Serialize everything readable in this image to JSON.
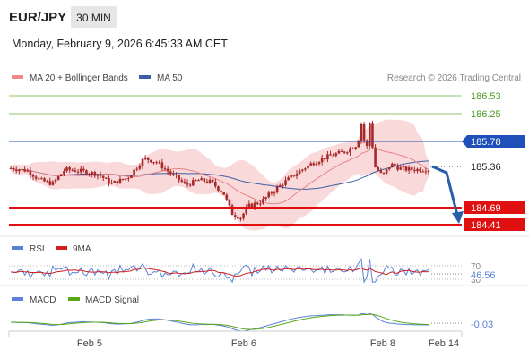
{
  "header": {
    "symbol": "EUR/JPY",
    "timeframe": "30 MIN",
    "datetime": "Monday, February 9, 2026 6:45:33 AM CET"
  },
  "legend": {
    "ma20_label": "MA 20 + Bollinger Bands",
    "ma50_label": "MA 50",
    "credit": "Research © 2026 Trading Central"
  },
  "colors": {
    "candle": "#a82a2a",
    "bollinger_fill": "#f9d9d9",
    "ma20": "#e8838a",
    "ma50": "#3a5ea8",
    "resistance_green": "#8fc46a",
    "pivot_blue": "#1f4fb8",
    "support_red": "#e01010",
    "arrow": "#2a5fa8",
    "rsi": "#5b82d6",
    "rsi_ma": "#d01e1e",
    "macd": "#5b82d6",
    "macd_signal": "#5aa81a"
  },
  "levels": {
    "r2": "186.53",
    "r1": "186.25",
    "pivot": "185.78",
    "current": "185.36",
    "s1": "184.69",
    "s2": "184.41"
  },
  "rsi_panel": {
    "label": "RSI",
    "ma_label": "9MA",
    "level_70": "70",
    "level_30": "30",
    "value": "46.56"
  },
  "macd_panel": {
    "label": "MACD",
    "signal_label": "MACD Signal",
    "value": "-0.03"
  },
  "x_axis": {
    "ticks": [
      "Feb 5",
      "Feb 6",
      "Feb 8",
      "Feb 14"
    ]
  },
  "chart_data": {
    "type": "line",
    "price_range": [
      184.3,
      186.7
    ],
    "price_path_approx": [
      [
        0,
        185.38
      ],
      [
        0.04,
        185.34
      ],
      [
        0.07,
        185.18
      ],
      [
        0.1,
        185.12
      ],
      [
        0.13,
        185.36
      ],
      [
        0.17,
        185.33
      ],
      [
        0.21,
        185.28
      ],
      [
        0.24,
        185.12
      ],
      [
        0.28,
        185.22
      ],
      [
        0.32,
        185.55
      ],
      [
        0.35,
        185.48
      ],
      [
        0.39,
        185.25
      ],
      [
        0.42,
        185.1
      ],
      [
        0.45,
        185.18
      ],
      [
        0.48,
        185.15
      ],
      [
        0.51,
        184.95
      ],
      [
        0.53,
        184.62
      ],
      [
        0.55,
        184.55
      ],
      [
        0.57,
        184.75
      ],
      [
        0.6,
        184.82
      ],
      [
        0.62,
        184.95
      ],
      [
        0.65,
        185.12
      ],
      [
        0.68,
        185.28
      ],
      [
        0.72,
        185.46
      ],
      [
        0.76,
        185.58
      ],
      [
        0.8,
        185.66
      ],
      [
        0.83,
        185.78
      ],
      [
        0.84,
        186.18
      ],
      [
        0.85,
        185.6
      ],
      [
        0.86,
        186.2
      ],
      [
        0.87,
        185.42
      ],
      [
        0.89,
        185.25
      ],
      [
        0.91,
        185.45
      ],
      [
        0.93,
        185.38
      ],
      [
        0.95,
        185.36
      ]
    ],
    "rsi": {
      "current": 46.56,
      "levels": [
        70,
        30
      ]
    },
    "macd": {
      "current": -0.03
    }
  }
}
